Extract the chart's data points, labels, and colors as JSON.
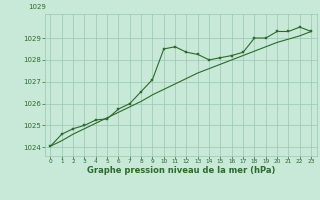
{
  "x": [
    0,
    1,
    2,
    3,
    4,
    5,
    6,
    7,
    8,
    9,
    10,
    11,
    12,
    13,
    14,
    15,
    16,
    17,
    18,
    19,
    20,
    21,
    22,
    23
  ],
  "y_main": [
    1024.05,
    1024.6,
    1024.85,
    1025.0,
    1025.25,
    1025.3,
    1025.75,
    1026.0,
    1026.55,
    1027.1,
    1028.5,
    1028.6,
    1028.35,
    1028.25,
    1028.0,
    1028.1,
    1028.2,
    1028.35,
    1029.0,
    1029.0,
    1029.3,
    1029.3,
    1029.5,
    1029.3
  ],
  "y_trend": [
    1024.05,
    1024.3,
    1024.6,
    1024.85,
    1025.1,
    1025.35,
    1025.6,
    1025.85,
    1026.1,
    1026.4,
    1026.65,
    1026.9,
    1027.15,
    1027.4,
    1027.6,
    1027.8,
    1028.0,
    1028.2,
    1028.4,
    1028.6,
    1028.8,
    1028.95,
    1029.1,
    1029.3
  ],
  "line_color": "#2d6a2d",
  "bg_color": "#c8e8d8",
  "grid_color": "#98c8b0",
  "xlabel": "Graphe pression niveau de la mer (hPa)",
  "ylim": [
    1023.6,
    1030.1
  ],
  "xlim": [
    -0.5,
    23.5
  ],
  "yticks": [
    1024,
    1025,
    1026,
    1027,
    1028,
    1029
  ],
  "xticks": [
    0,
    1,
    2,
    3,
    4,
    5,
    6,
    7,
    8,
    9,
    10,
    11,
    12,
    13,
    14,
    15,
    16,
    17,
    18,
    19,
    20,
    21,
    22,
    23
  ],
  "top_label": "1029",
  "marker_size": 2.0,
  "line_width": 0.8
}
